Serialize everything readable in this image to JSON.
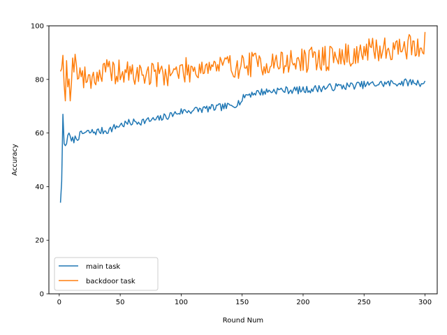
{
  "chart_data": {
    "type": "line",
    "title": "",
    "xlabel": "Round Num",
    "ylabel": "Accuracy",
    "xlim": [
      -8.5,
      310
    ],
    "ylim": [
      0,
      100
    ],
    "xticks": [
      0,
      50,
      100,
      150,
      200,
      250,
      300
    ],
    "yticks": [
      0,
      20,
      40,
      60,
      80,
      100
    ],
    "grid": false,
    "legend_position": "lower-left",
    "series": [
      {
        "name": "main task",
        "color": "#1f77b4",
        "anchors": [
          [
            1,
            34
          ],
          [
            2,
            42
          ],
          [
            3,
            67
          ],
          [
            4,
            56
          ],
          [
            6,
            56
          ],
          [
            8,
            60
          ],
          [
            10,
            57
          ],
          [
            20,
            60
          ],
          [
            40,
            61
          ],
          [
            50,
            63
          ],
          [
            60,
            64
          ],
          [
            80,
            65
          ],
          [
            100,
            68
          ],
          [
            120,
            69
          ],
          [
            140,
            70
          ],
          [
            150,
            72
          ],
          [
            152,
            74
          ],
          [
            160,
            75
          ],
          [
            180,
            76
          ],
          [
            200,
            76
          ],
          [
            220,
            77
          ],
          [
            250,
            78
          ],
          [
            270,
            78.5
          ],
          [
            290,
            79
          ],
          [
            300,
            78.5
          ]
        ],
        "noise": 1.4,
        "seed": 7
      },
      {
        "name": "backdoor task",
        "color": "#ff7f0e",
        "anchors": [
          [
            1,
            83
          ],
          [
            2,
            84
          ],
          [
            3,
            89
          ],
          [
            5,
            72
          ],
          [
            6,
            87
          ],
          [
            9,
            72
          ],
          [
            11,
            88
          ],
          [
            20,
            80
          ],
          [
            40,
            83
          ],
          [
            60,
            82
          ],
          [
            80,
            82
          ],
          [
            100,
            83
          ],
          [
            120,
            85
          ],
          [
            140,
            85
          ],
          [
            150,
            85
          ],
          [
            160,
            86
          ],
          [
            180,
            86
          ],
          [
            200,
            87
          ],
          [
            220,
            88
          ],
          [
            240,
            89
          ],
          [
            260,
            91
          ],
          [
            280,
            92
          ],
          [
            300,
            93
          ]
        ],
        "noise": 4.8,
        "seed": 19
      }
    ]
  }
}
